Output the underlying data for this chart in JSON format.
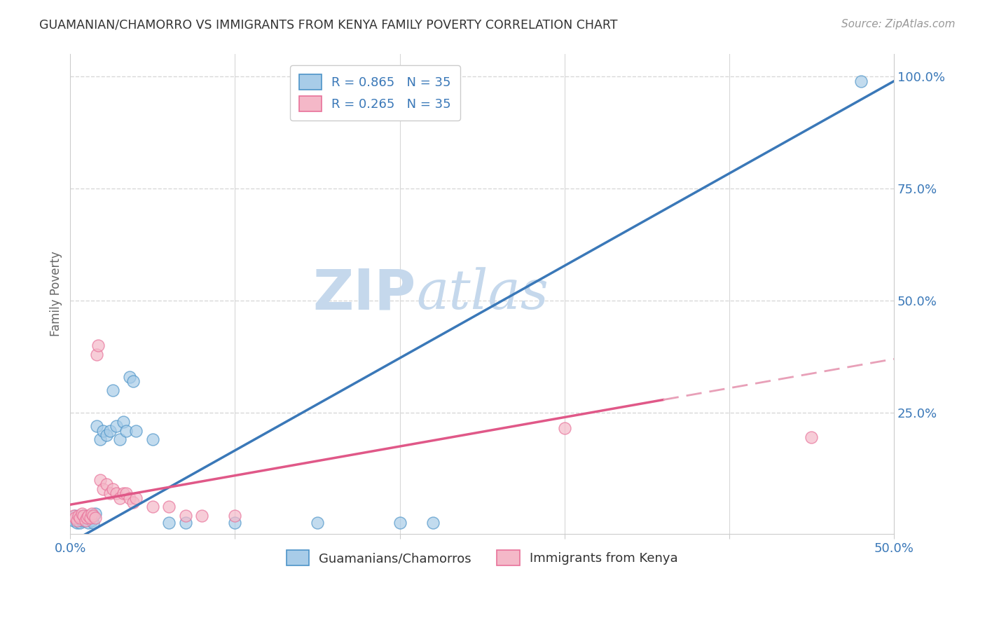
{
  "title": "GUAMANIAN/CHAMORRO VS IMMIGRANTS FROM KENYA FAMILY POVERTY CORRELATION CHART",
  "source": "Source: ZipAtlas.com",
  "ylabel": "Family Poverty",
  "blue_label": "Guamanians/Chamorros",
  "pink_label": "Immigrants from Kenya",
  "blue_R": 0.865,
  "pink_R": 0.265,
  "N": 35,
  "xlim": [
    0.0,
    0.5
  ],
  "ylim": [
    -0.02,
    1.05
  ],
  "right_yticks": [
    0.0,
    0.25,
    0.5,
    0.75,
    1.0
  ],
  "right_yticklabels": [
    "",
    "25.0%",
    "50.0%",
    "75.0%",
    "100.0%"
  ],
  "xtick_vals": [
    0.0,
    0.1,
    0.2,
    0.3,
    0.4,
    0.5
  ],
  "xtick_labels": [
    "0.0%",
    "",
    "",
    "",
    "",
    "50.0%"
  ],
  "blue_dots": [
    [
      0.002,
      0.01
    ],
    [
      0.003,
      0.02
    ],
    [
      0.004,
      0.005
    ],
    [
      0.005,
      0.015
    ],
    [
      0.006,
      0.005
    ],
    [
      0.007,
      0.01
    ],
    [
      0.008,
      0.02
    ],
    [
      0.009,
      0.01
    ],
    [
      0.01,
      0.015
    ],
    [
      0.011,
      0.005
    ],
    [
      0.012,
      0.02
    ],
    [
      0.013,
      0.01
    ],
    [
      0.014,
      0.005
    ],
    [
      0.015,
      0.025
    ],
    [
      0.016,
      0.22
    ],
    [
      0.018,
      0.19
    ],
    [
      0.02,
      0.21
    ],
    [
      0.022,
      0.2
    ],
    [
      0.024,
      0.21
    ],
    [
      0.026,
      0.3
    ],
    [
      0.028,
      0.22
    ],
    [
      0.03,
      0.19
    ],
    [
      0.032,
      0.23
    ],
    [
      0.034,
      0.21
    ],
    [
      0.036,
      0.33
    ],
    [
      0.038,
      0.32
    ],
    [
      0.04,
      0.21
    ],
    [
      0.05,
      0.19
    ],
    [
      0.06,
      0.005
    ],
    [
      0.07,
      0.005
    ],
    [
      0.1,
      0.005
    ],
    [
      0.15,
      0.005
    ],
    [
      0.2,
      0.005
    ],
    [
      0.22,
      0.005
    ],
    [
      0.48,
      0.99
    ]
  ],
  "pink_dots": [
    [
      0.002,
      0.02
    ],
    [
      0.003,
      0.015
    ],
    [
      0.004,
      0.01
    ],
    [
      0.005,
      0.02
    ],
    [
      0.006,
      0.015
    ],
    [
      0.007,
      0.025
    ],
    [
      0.008,
      0.02
    ],
    [
      0.009,
      0.01
    ],
    [
      0.01,
      0.015
    ],
    [
      0.011,
      0.02
    ],
    [
      0.012,
      0.015
    ],
    [
      0.013,
      0.025
    ],
    [
      0.014,
      0.02
    ],
    [
      0.015,
      0.015
    ],
    [
      0.016,
      0.38
    ],
    [
      0.017,
      0.4
    ],
    [
      0.018,
      0.1
    ],
    [
      0.02,
      0.08
    ],
    [
      0.022,
      0.09
    ],
    [
      0.024,
      0.07
    ],
    [
      0.026,
      0.08
    ],
    [
      0.028,
      0.07
    ],
    [
      0.03,
      0.06
    ],
    [
      0.032,
      0.07
    ],
    [
      0.034,
      0.07
    ],
    [
      0.036,
      0.06
    ],
    [
      0.038,
      0.05
    ],
    [
      0.04,
      0.06
    ],
    [
      0.05,
      0.04
    ],
    [
      0.06,
      0.04
    ],
    [
      0.07,
      0.02
    ],
    [
      0.08,
      0.02
    ],
    [
      0.1,
      0.02
    ],
    [
      0.3,
      0.215
    ],
    [
      0.45,
      0.195
    ]
  ],
  "blue_color": "#a8cce8",
  "pink_color": "#f4b8c8",
  "blue_edge_color": "#4d94c8",
  "pink_edge_color": "#e8729a",
  "blue_line_color": "#3a78b8",
  "pink_line_color": "#e05888",
  "pink_dash_color": "#e8a0b8",
  "background_color": "#ffffff",
  "grid_color": "#d8d8d8",
  "watermark_color": "#c5d8ec"
}
